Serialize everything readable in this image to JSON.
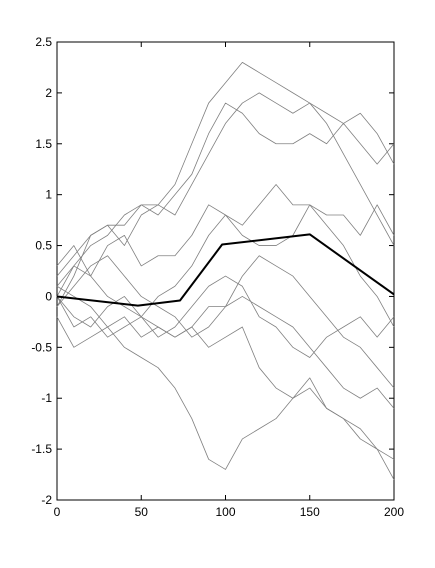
{
  "chart_data": {
    "type": "line",
    "x": [
      0,
      10,
      20,
      30,
      40,
      50,
      60,
      70,
      80,
      90,
      100,
      110,
      120,
      130,
      140,
      150,
      160,
      170,
      180,
      190,
      200
    ],
    "series": [
      {
        "color": "#808080",
        "values": [
          0.1,
          0.3,
          0.5,
          0.6,
          0.8,
          0.9,
          0.9,
          1.1,
          1.5,
          1.9,
          2.1,
          2.3,
          2.2,
          2.1,
          2.0,
          1.9,
          1.8,
          1.7,
          1.8,
          1.6,
          1.3
        ]
      },
      {
        "color": "#808080",
        "values": [
          0.2,
          0.4,
          0.6,
          0.7,
          0.7,
          0.9,
          0.8,
          1.0,
          1.2,
          1.6,
          1.9,
          1.8,
          1.6,
          1.5,
          1.5,
          1.6,
          1.5,
          1.7,
          1.5,
          1.3,
          1.5
        ]
      },
      {
        "color": "#808080",
        "values": [
          -0.1,
          0.2,
          0.6,
          0.7,
          0.5,
          0.8,
          0.9,
          0.8,
          1.1,
          1.4,
          1.7,
          1.9,
          2.0,
          1.9,
          1.8,
          1.9,
          1.7,
          1.4,
          1.1,
          0.8,
          0.5
        ]
      },
      {
        "color": "#808080",
        "values": [
          0.0,
          0.3,
          0.2,
          0.5,
          0.6,
          0.3,
          0.4,
          0.4,
          0.6,
          0.9,
          0.8,
          0.7,
          0.9,
          1.1,
          0.9,
          0.9,
          0.8,
          0.8,
          0.6,
          0.9,
          0.6
        ]
      },
      {
        "color": "#808080",
        "values": [
          0.3,
          0.5,
          0.2,
          0.0,
          -0.1,
          -0.2,
          0.0,
          0.1,
          0.3,
          0.6,
          0.8,
          0.6,
          0.5,
          0.5,
          0.6,
          0.9,
          0.7,
          0.5,
          0.2,
          0.0,
          -0.3
        ]
      },
      {
        "color": "#808080",
        "values": [
          -0.2,
          -0.5,
          -0.4,
          -0.3,
          -0.5,
          -0.6,
          -0.7,
          -0.9,
          -1.2,
          -1.6,
          -1.7,
          -1.4,
          -1.3,
          -1.2,
          -1.0,
          -0.9,
          -1.1,
          -1.2,
          -1.3,
          -1.5,
          -1.8
        ]
      },
      {
        "color": "#808080",
        "values": [
          0.0,
          -0.3,
          -0.2,
          -0.4,
          -0.3,
          -0.2,
          -0.3,
          -0.4,
          -0.3,
          -0.5,
          -0.4,
          -0.3,
          -0.7,
          -0.9,
          -1.0,
          -0.8,
          -1.1,
          -1.2,
          -1.4,
          -1.5,
          -1.6
        ]
      },
      {
        "color": "#808080",
        "values": [
          0.1,
          0.0,
          -0.1,
          -0.3,
          -0.2,
          -0.4,
          -0.3,
          -0.4,
          -0.3,
          -0.1,
          -0.1,
          0.0,
          -0.1,
          -0.2,
          -0.3,
          -0.5,
          -0.7,
          -0.9,
          -1.0,
          -0.9,
          -1.1
        ]
      },
      {
        "color": "#808080",
        "values": [
          -0.1,
          0.1,
          0.3,
          0.4,
          0.2,
          0.0,
          -0.1,
          -0.2,
          -0.4,
          -0.3,
          -0.1,
          0.2,
          0.4,
          0.3,
          0.2,
          0.0,
          -0.2,
          -0.4,
          -0.5,
          -0.7,
          -0.9
        ]
      },
      {
        "color": "#808080",
        "values": [
          0.0,
          -0.2,
          -0.3,
          -0.1,
          0.0,
          -0.2,
          -0.4,
          -0.3,
          -0.1,
          0.1,
          0.2,
          0.1,
          -0.2,
          -0.3,
          -0.5,
          -0.6,
          -0.4,
          -0.3,
          -0.2,
          -0.4,
          -0.2
        ]
      },
      {
        "color": "#000000",
        "x": [
          0,
          48,
          73,
          98,
          150,
          200
        ],
        "values": [
          0,
          -0.09,
          -0.04,
          0.51,
          0.61,
          0.02
        ]
      }
    ],
    "xlim": [
      0,
      200
    ],
    "xticks": [
      0,
      50,
      100,
      150,
      200
    ],
    "ylim": [
      -2,
      2.5
    ],
    "yticks": [
      -2,
      -1.5,
      -1,
      -0.5,
      0,
      0.5,
      1,
      1.5,
      2,
      2.5
    ],
    "grid": false
  }
}
